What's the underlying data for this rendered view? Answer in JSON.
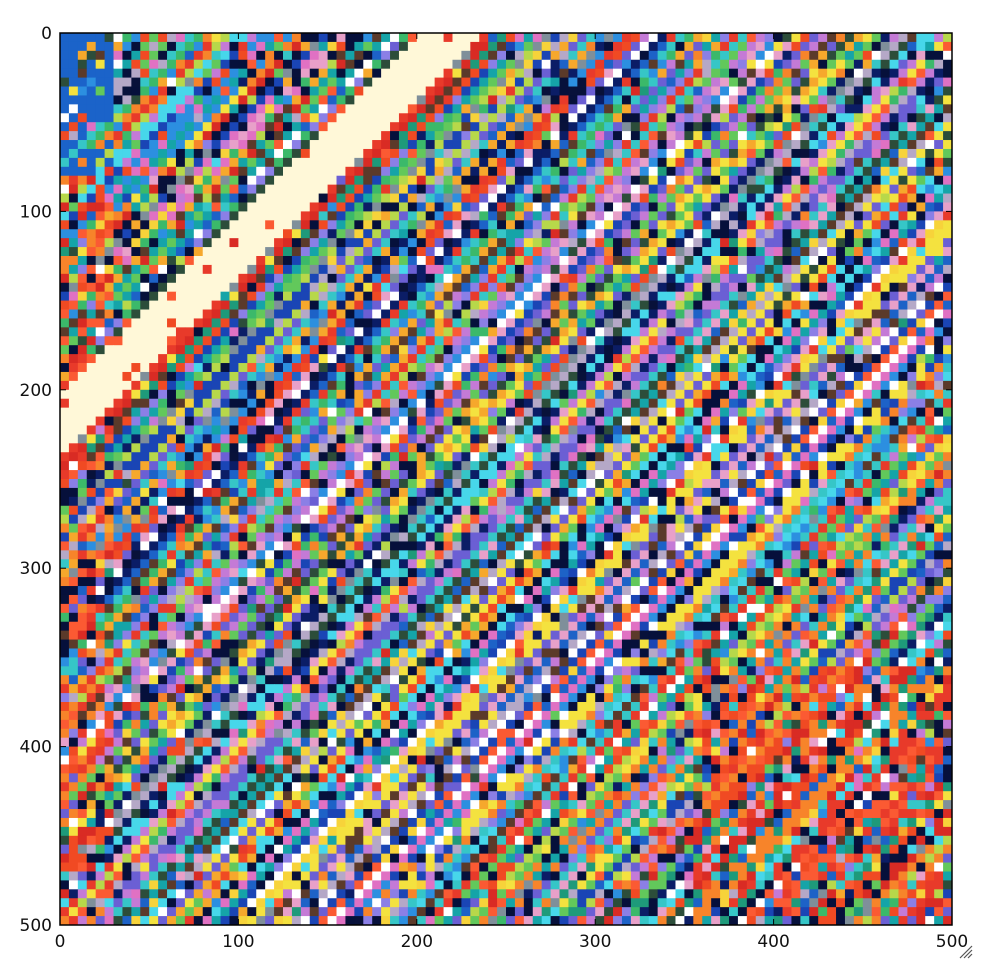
{
  "chart_data": {
    "type": "heatmap",
    "title": "",
    "xlabel": "",
    "ylabel": "",
    "xlim": [
      0,
      500
    ],
    "ylim": [
      500,
      0
    ],
    "x_ticks": [
      0,
      100,
      200,
      300,
      400,
      500
    ],
    "y_ticks": [
      0,
      100,
      200,
      300,
      400,
      500
    ],
    "x_tick_labels": [
      "0",
      "100",
      "200",
      "300",
      "400",
      "500"
    ],
    "y_tick_labels": [
      "0",
      "100",
      "200",
      "300",
      "400",
      "500"
    ],
    "grid": false,
    "pixel_grid": 100,
    "cell_size": 5,
    "pattern": "diagonal bands of randomly colored square pixels, running from lower-left to upper-right",
    "palette": [
      "#e83a2a",
      "#f04a23",
      "#d92b24",
      "#fb5a33",
      "#f7842a",
      "#f6a82c",
      "#f7d33a",
      "#f4e23f",
      "#b7d84a",
      "#62c85b",
      "#3bb96a",
      "#1e9a7a",
      "#15a4a8",
      "#36c6c7",
      "#47d7ea",
      "#2c8fe0",
      "#1d62c7",
      "#1a45b5",
      "#0b1d66",
      "#08113a",
      "#6b5fd4",
      "#8b7fe6",
      "#c47ad6",
      "#e071c3",
      "#e8a0c9",
      "#b5a8c7",
      "#7f8f9a",
      "#2c4d3a",
      "#5b3a2a",
      "#ffffff"
    ],
    "feature_colors": {
      "cream_band": "#fff8d8",
      "blue_corner": "#1b63c9",
      "dark_navy": "#06103b"
    }
  }
}
